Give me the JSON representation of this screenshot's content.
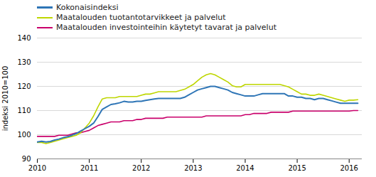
{
  "chart_data": {
    "type": "line",
    "ylabel": "indeksi 2010=100",
    "x": [
      2010.0,
      2010.0833333333,
      2010.1666666667,
      2010.25,
      2010.3333333333,
      2010.4166666667,
      2010.5,
      2010.5833333333,
      2010.6666666667,
      2010.75,
      2010.8333333333,
      2010.9166666667,
      2011.0,
      2011.0833333333,
      2011.1666666667,
      2011.25,
      2011.3333333333,
      2011.4166666667,
      2011.5,
      2011.5833333333,
      2011.6666666667,
      2011.75,
      2011.8333333333,
      2011.9166666667,
      2012.0,
      2012.0833333333,
      2012.1666666667,
      2012.25,
      2012.3333333333,
      2012.4166666667,
      2012.5,
      2012.5833333333,
      2012.6666666667,
      2012.75,
      2012.8333333333,
      2012.9166666667,
      2013.0,
      2013.0833333333,
      2013.1666666667,
      2013.25,
      2013.3333333333,
      2013.4166666667,
      2013.5,
      2013.5833333333,
      2013.6666666667,
      2013.75,
      2013.8333333333,
      2013.9166666667,
      2014.0,
      2014.0833333333,
      2014.1666666667,
      2014.25,
      2014.3333333333,
      2014.4166666667,
      2014.5,
      2014.5833333333,
      2014.6666666667,
      2014.75,
      2014.8333333333,
      2014.9166666667,
      2015.0,
      2015.0833333333,
      2015.1666666667,
      2015.25,
      2015.3333333333,
      2015.4166666667,
      2015.5,
      2015.5833333333,
      2015.6666666667,
      2015.75,
      2015.8333333333,
      2015.9166666667,
      2016.0,
      2016.0833333333,
      2016.1666666667
    ],
    "xlim": [
      2010.0,
      2016.25
    ],
    "xticks": [
      2010,
      2011,
      2012,
      2013,
      2014,
      2015,
      2016
    ],
    "ylim": [
      90,
      140
    ],
    "yticks": [
      90,
      100,
      110,
      120,
      130,
      140
    ],
    "grid": true,
    "legend": "top-left",
    "series": [
      {
        "name": "Kokonaisindeksi",
        "color": "#2e75b6",
        "values": [
          97.0,
          97.3,
          97.0,
          97.2,
          97.8,
          98.2,
          98.8,
          99.2,
          99.8,
          100.5,
          101.5,
          102.5,
          103.5,
          104.8,
          107.5,
          110.5,
          111.5,
          112.5,
          112.8,
          113.2,
          113.8,
          113.5,
          113.5,
          113.8,
          113.8,
          114.2,
          114.5,
          114.8,
          115.0,
          115.0,
          115.0,
          115.0,
          115.0,
          115.0,
          115.5,
          116.5,
          117.5,
          118.5,
          119.0,
          119.5,
          120.0,
          120.0,
          119.5,
          119.0,
          118.5,
          117.5,
          117.0,
          116.5,
          116.0,
          116.0,
          116.0,
          116.5,
          117.0,
          117.0,
          117.0,
          117.0,
          117.0,
          117.0,
          116.0,
          116.0,
          115.5,
          115.5,
          115.0,
          115.0,
          114.5,
          115.0,
          115.0,
          114.5,
          114.0,
          113.5,
          113.0,
          113.0,
          113.0,
          113.0,
          113.0
        ]
      },
      {
        "name": "Maatalouden tuotantotarvikkeet ja palvelut",
        "color": "#bed600",
        "values": [
          96.8,
          96.8,
          96.3,
          96.8,
          97.3,
          97.8,
          98.3,
          98.8,
          99.3,
          99.8,
          100.8,
          102.8,
          104.8,
          107.8,
          111.5,
          114.8,
          115.3,
          115.3,
          115.3,
          115.8,
          115.8,
          115.8,
          115.8,
          115.8,
          116.3,
          116.8,
          116.8,
          117.3,
          117.8,
          117.8,
          117.8,
          117.8,
          117.8,
          118.3,
          118.8,
          119.8,
          120.8,
          122.3,
          123.8,
          124.8,
          125.3,
          124.8,
          123.8,
          122.8,
          121.8,
          120.3,
          119.8,
          119.8,
          120.8,
          120.8,
          120.8,
          120.8,
          120.8,
          120.8,
          120.8,
          120.8,
          120.8,
          120.3,
          119.8,
          118.8,
          117.8,
          116.8,
          116.8,
          116.3,
          116.3,
          116.8,
          116.3,
          115.8,
          115.3,
          114.8,
          114.3,
          113.8,
          114.3,
          114.3,
          114.5
        ]
      },
      {
        "name": "Maatalouden investointeihin käytetyt tavarat ja palvelut",
        "color": "#c9006b",
        "values": [
          99.3,
          99.3,
          99.3,
          99.3,
          99.3,
          99.8,
          99.8,
          99.8,
          100.3,
          100.8,
          100.8,
          101.3,
          101.8,
          102.8,
          103.8,
          104.3,
          104.8,
          105.3,
          105.3,
          105.3,
          105.8,
          105.8,
          105.8,
          106.3,
          106.3,
          106.8,
          106.8,
          106.8,
          106.8,
          106.8,
          107.3,
          107.3,
          107.3,
          107.3,
          107.3,
          107.3,
          107.3,
          107.3,
          107.3,
          107.8,
          107.8,
          107.8,
          107.8,
          107.8,
          107.8,
          107.8,
          107.8,
          107.8,
          108.3,
          108.3,
          108.8,
          108.8,
          108.8,
          108.8,
          109.3,
          109.3,
          109.3,
          109.3,
          109.3,
          109.8,
          109.8,
          109.8,
          109.8,
          109.8,
          109.8,
          109.8,
          109.8,
          109.8,
          109.8,
          109.8,
          109.8,
          109.8,
          109.8,
          110.0,
          110.0
        ]
      }
    ]
  }
}
